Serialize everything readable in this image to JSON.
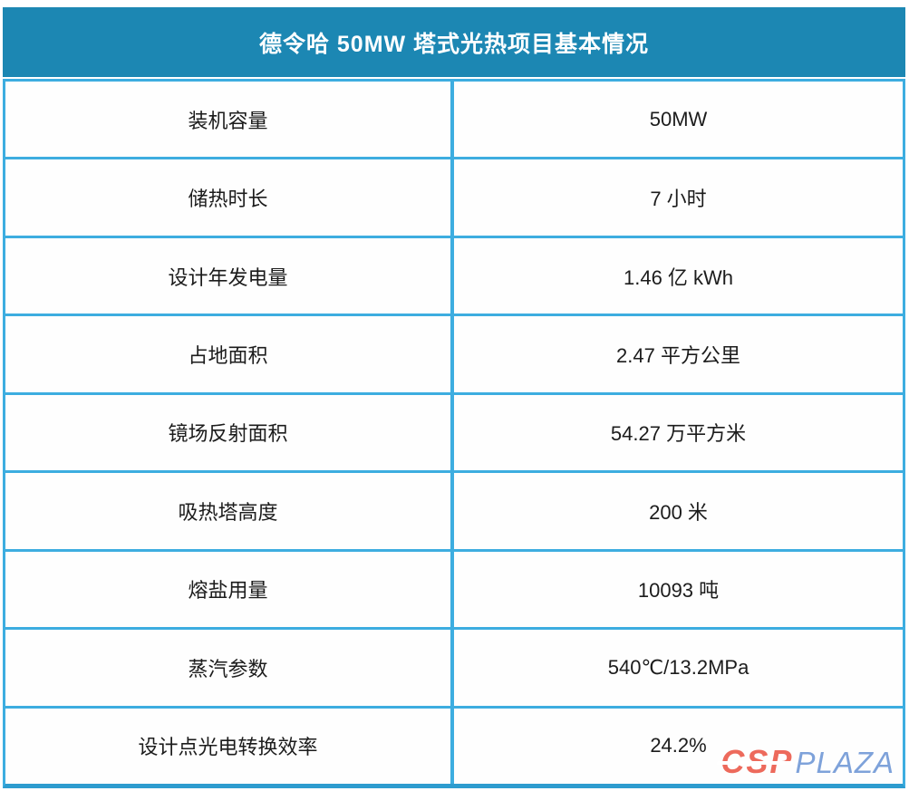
{
  "chart_data": {
    "type": "table",
    "title": "德令哈 50MW 塔式光热项目基本情况",
    "rows": [
      {
        "label": "装机容量",
        "value": "50MW"
      },
      {
        "label": "储热时长",
        "value": "7 小时"
      },
      {
        "label": "设计年发电量",
        "value": "1.46 亿 kWh"
      },
      {
        "label": "占地面积",
        "value": "2.47 平方公里"
      },
      {
        "label": "镜场反射面积",
        "value": "54.27 万平方米"
      },
      {
        "label": "吸热塔高度",
        "value": "200 米"
      },
      {
        "label": "熔盐用量",
        "value": "10093 吨"
      },
      {
        "label": "蒸汽参数",
        "value": "540℃/13.2MPa"
      },
      {
        "label": "设计点光电转换效率",
        "value": "24.2%"
      }
    ],
    "layout": {
      "columns": 2,
      "legend_position": "none",
      "grid": "full-borders"
    }
  },
  "watermark": {
    "csp": "CSP",
    "plaza": "PLAZA"
  },
  "colors": {
    "header_bg": "#1c87b3",
    "table_border": "#3dade0",
    "bottom_border": "#2d9ccf",
    "cell_bg": "#fefefe",
    "cell_text": "#1c1c1c",
    "title_text": "#ffffff",
    "watermark_csp": "#ed6a5c",
    "watermark_plaza": "#7ea2da"
  }
}
